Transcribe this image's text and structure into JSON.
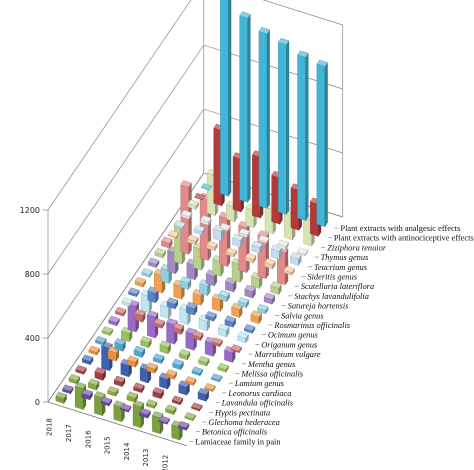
{
  "chart_data": {
    "type": "bar",
    "projection": "3d-grouped",
    "y_ticks": [
      0,
      400,
      800,
      1200
    ],
    "ylim": [
      0,
      1200
    ],
    "x_categories": [
      "2018",
      "2017",
      "2016",
      "2015",
      "2014",
      "2013",
      "2012"
    ],
    "series": [
      {
        "name": "Plant extracts with analgesic effects",
        "italic": false,
        "color": "#41b6d6",
        "values": [
          0,
          1230,
          1150,
          1090,
          1060,
          1020,
          1000
        ]
      },
      {
        "name": "Plant extracts with antinociceptive effects",
        "italic": false,
        "color": "#b23a3a",
        "values": [
          0,
          470,
          330,
          380,
          290,
          250,
          200
        ]
      },
      {
        "name": "Ziziphora tenuior",
        "italic": true,
        "color": "#d6e4b2",
        "values": [
          20,
          250,
          90,
          110,
          150,
          170,
          160
        ]
      },
      {
        "name": "Thymus genus",
        "italic": true,
        "color": "#e8e8e8",
        "values": [
          15,
          20,
          10,
          15,
          10,
          20,
          10
        ]
      },
      {
        "name": "Teucrium genus",
        "italic": true,
        "color": "#c6dcee",
        "values": [
          10,
          20,
          60,
          40,
          35,
          50,
          40
        ]
      },
      {
        "name": "Sideritis genus",
        "italic": true,
        "color": "#f2c9a0",
        "values": [
          10,
          20,
          20,
          15,
          20,
          25,
          15
        ]
      },
      {
        "name": "Scutellaria lateriflora",
        "italic": true,
        "color": "#e08a8a",
        "values": [
          30,
          420,
          380,
          300,
          280,
          260,
          200
        ]
      },
      {
        "name": "Stachys lavandulifolia",
        "italic": true,
        "color": "#b8d08a",
        "values": [
          20,
          230,
          130,
          90,
          110,
          60,
          40
        ]
      },
      {
        "name": "Satureja hortensis",
        "italic": true,
        "color": "#a08ac0",
        "values": [
          20,
          130,
          90,
          60,
          50,
          40,
          30
        ]
      },
      {
        "name": "Salvia genus",
        "italic": true,
        "color": "#8ed0e0",
        "values": [
          15,
          80,
          40,
          60,
          30,
          25,
          20
        ]
      },
      {
        "name": "Rosmarinus officinalis",
        "italic": true,
        "color": "#f0a050",
        "values": [
          20,
          110,
          80,
          60,
          70,
          50,
          40
        ]
      },
      {
        "name": "Ocimum genus",
        "italic": true,
        "color": "#5a84c8",
        "values": [
          15,
          60,
          30,
          40,
          20,
          30,
          15
        ]
      },
      {
        "name": "Origanum genus",
        "italic": true,
        "color": "#bfe6f0",
        "values": [
          15,
          100,
          70,
          90,
          60,
          40,
          30
        ]
      },
      {
        "name": "Marrubium vulgare",
        "italic": true,
        "color": "#c86a6a",
        "values": [
          15,
          40,
          20,
          30,
          20,
          15,
          10
        ]
      },
      {
        "name": "Mentha genus",
        "italic": true,
        "color": "#9a6ac8",
        "values": [
          20,
          160,
          130,
          120,
          100,
          80,
          60
        ]
      },
      {
        "name": "Melissa officinalis",
        "italic": true,
        "color": "#98c060",
        "values": [
          15,
          50,
          30,
          40,
          25,
          20,
          15
        ]
      },
      {
        "name": "Lamium genus",
        "italic": true,
        "color": "#50a8d0",
        "values": [
          15,
          40,
          30,
          20,
          25,
          15,
          10
        ]
      },
      {
        "name": "Leonorus cardiaca",
        "italic": true,
        "color": "#e89040",
        "values": [
          15,
          50,
          30,
          25,
          20,
          15,
          10
        ]
      },
      {
        "name": "Lavandula officinalis",
        "italic": true,
        "color": "#4060b0",
        "values": [
          20,
          140,
          70,
          80,
          60,
          50,
          40
        ]
      },
      {
        "name": "Hyptis pectinata",
        "italic": true,
        "color": "#a04040",
        "values": [
          15,
          40,
          25,
          20,
          30,
          15,
          10
        ]
      },
      {
        "name": "Glechoma hederacea",
        "italic": true,
        "color": "#88aa40",
        "values": [
          20,
          30,
          20,
          25,
          15,
          20,
          10
        ]
      },
      {
        "name": "Betonica officinalis",
        "italic": true,
        "color": "#6a4aa0",
        "values": [
          15,
          25,
          15,
          10,
          20,
          10,
          15
        ]
      },
      {
        "name": "Lamiaceae family in pain",
        "italic": false,
        "color": "#7aa040",
        "values": [
          30,
          130,
          110,
          90,
          130,
          100,
          80
        ]
      }
    ]
  }
}
